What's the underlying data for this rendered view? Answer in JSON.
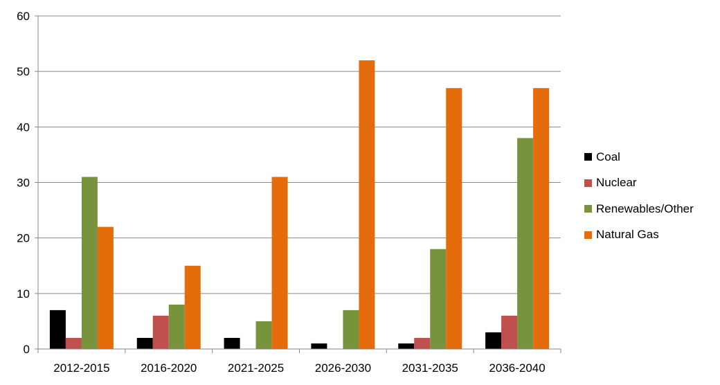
{
  "chart_data": {
    "type": "bar",
    "title": "",
    "xlabel": "",
    "ylabel": "",
    "ylim": [
      0,
      60
    ],
    "yticks": [
      0,
      10,
      20,
      30,
      40,
      50,
      60
    ],
    "grid": true,
    "legend_position": "right",
    "categories": [
      "2012-2015",
      "2016-2020",
      "2021-2025",
      "2026-2030",
      "2031-2035",
      "2036-2040"
    ],
    "series": [
      {
        "name": "Coal",
        "color": "#000000",
        "values": [
          7,
          2,
          2,
          1,
          1,
          3
        ]
      },
      {
        "name": "Nuclear",
        "color": "#C0504D",
        "values": [
          2,
          6,
          0,
          0,
          2,
          6
        ]
      },
      {
        "name": "Renewables/Other",
        "color": "#77933C",
        "values": [
          31,
          8,
          5,
          7,
          18,
          38
        ]
      },
      {
        "name": "Natural Gas",
        "color": "#E46C0A",
        "values": [
          22,
          15,
          31,
          52,
          47,
          47
        ]
      }
    ]
  }
}
